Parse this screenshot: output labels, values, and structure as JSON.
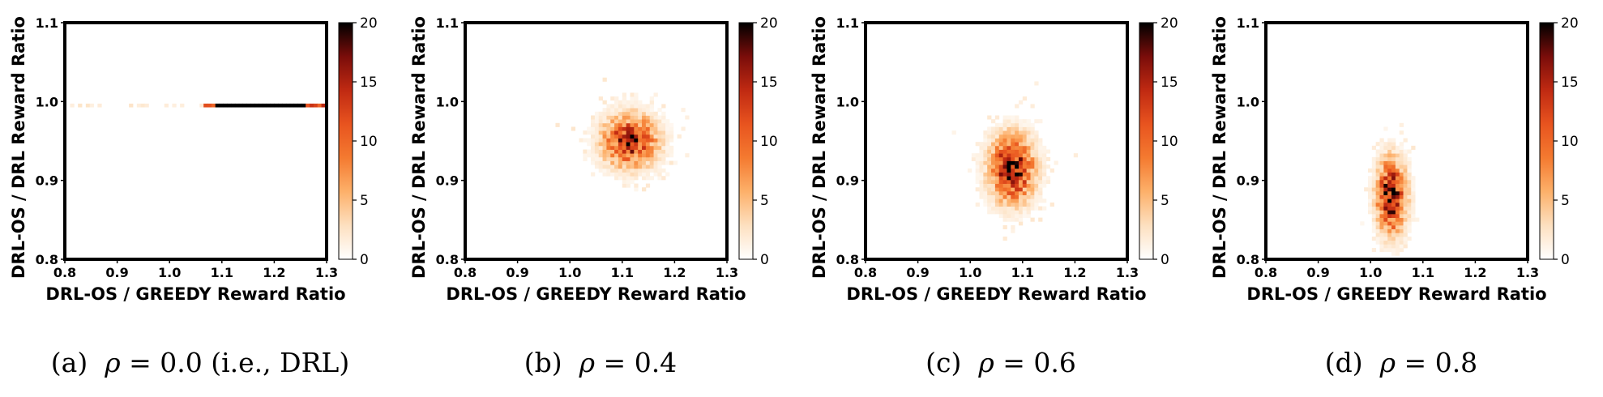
{
  "colors": {
    "cmap": [
      "#ffffff",
      "#fde0c0",
      "#fdb06a",
      "#f47a30",
      "#e8541f",
      "#c02a12",
      "#7a0d0a",
      "#000000"
    ],
    "frame": "#000000"
  },
  "chart_data": [
    {
      "type": "heatmap",
      "caption": {
        "label": "(a)",
        "rho": "ρ",
        "eq": " = 0.0 (i.e., DRL)"
      },
      "xlabel": "DRL-OS / GREEDY Reward Ratio",
      "ylabel": "DRL-OS / DRL Reward Ratio",
      "xlim": [
        0.8,
        1.3
      ],
      "ylim": [
        0.8,
        1.1
      ],
      "xticks": [
        "0.8",
        "0.9",
        "1.0",
        "1.1",
        "1.2",
        "1.3"
      ],
      "yticks": [
        "0.8",
        "0.9",
        "1.0",
        "1.1"
      ],
      "colorbar": {
        "min": 0,
        "max": 20,
        "ticks": [
          "0",
          "5",
          "10",
          "15",
          "20"
        ]
      },
      "center_x": 1.15,
      "center_y": 0.995,
      "sd_x": 0.08,
      "sd_y": 0.0,
      "peak": 20,
      "seed": 11,
      "line_mode": true
    },
    {
      "type": "heatmap",
      "caption": {
        "label": "(b)",
        "rho": "ρ",
        "eq": " = 0.4"
      },
      "xlabel": "DRL-OS / GREEDY Reward Ratio",
      "ylabel": "DRL-OS / DRL Reward Ratio",
      "xlim": [
        0.8,
        1.3
      ],
      "ylim": [
        0.8,
        1.1
      ],
      "xticks": [
        "0.8",
        "0.9",
        "1.0",
        "1.1",
        "1.2",
        "1.3"
      ],
      "yticks": [
        "0.8",
        "0.9",
        "1.0",
        "1.1"
      ],
      "colorbar": {
        "min": 0,
        "max": 20,
        "ticks": [
          "0",
          "5",
          "10",
          "15",
          "20"
        ]
      },
      "center_x": 1.115,
      "center_y": 0.95,
      "sd_x": 0.035,
      "sd_y": 0.022,
      "peak": 16,
      "seed": 23,
      "line_mode": false
    },
    {
      "type": "heatmap",
      "caption": {
        "label": "(c)",
        "rho": "ρ",
        "eq": " = 0.6"
      },
      "xlabel": "DRL-OS / GREEDY Reward Ratio",
      "ylabel": "DRL-OS / DRL Reward Ratio",
      "xlim": [
        0.8,
        1.3
      ],
      "ylim": [
        0.8,
        1.1
      ],
      "xticks": [
        "0.8",
        "0.9",
        "1.0",
        "1.1",
        "1.2",
        "1.3"
      ],
      "yticks": [
        "0.8",
        "0.9",
        "1.0",
        "1.1"
      ],
      "colorbar": {
        "min": 0,
        "max": 20,
        "ticks": [
          "0",
          "5",
          "10",
          "15",
          "20"
        ]
      },
      "center_x": 1.08,
      "center_y": 0.915,
      "sd_x": 0.028,
      "sd_y": 0.028,
      "peak": 18,
      "seed": 37,
      "line_mode": false
    },
    {
      "type": "heatmap",
      "caption": {
        "label": "(d)",
        "rho": "ρ",
        "eq": " = 0.8"
      },
      "xlabel": "DRL-OS / GREEDY Reward Ratio",
      "ylabel": "DRL-OS / DRL Reward Ratio",
      "xlim": [
        0.8,
        1.3
      ],
      "ylim": [
        0.8,
        1.1
      ],
      "xticks": [
        "0.8",
        "0.9",
        "1.0",
        "1.1",
        "1.2",
        "1.3"
      ],
      "yticks": [
        "0.8",
        "0.9",
        "1.0",
        "1.1"
      ],
      "colorbar": {
        "min": 0,
        "max": 20,
        "ticks": [
          "0",
          "5",
          "10",
          "15",
          "20"
        ]
      },
      "center_x": 1.04,
      "center_y": 0.88,
      "sd_x": 0.018,
      "sd_y": 0.03,
      "peak": 20,
      "seed": 53,
      "line_mode": false
    }
  ]
}
